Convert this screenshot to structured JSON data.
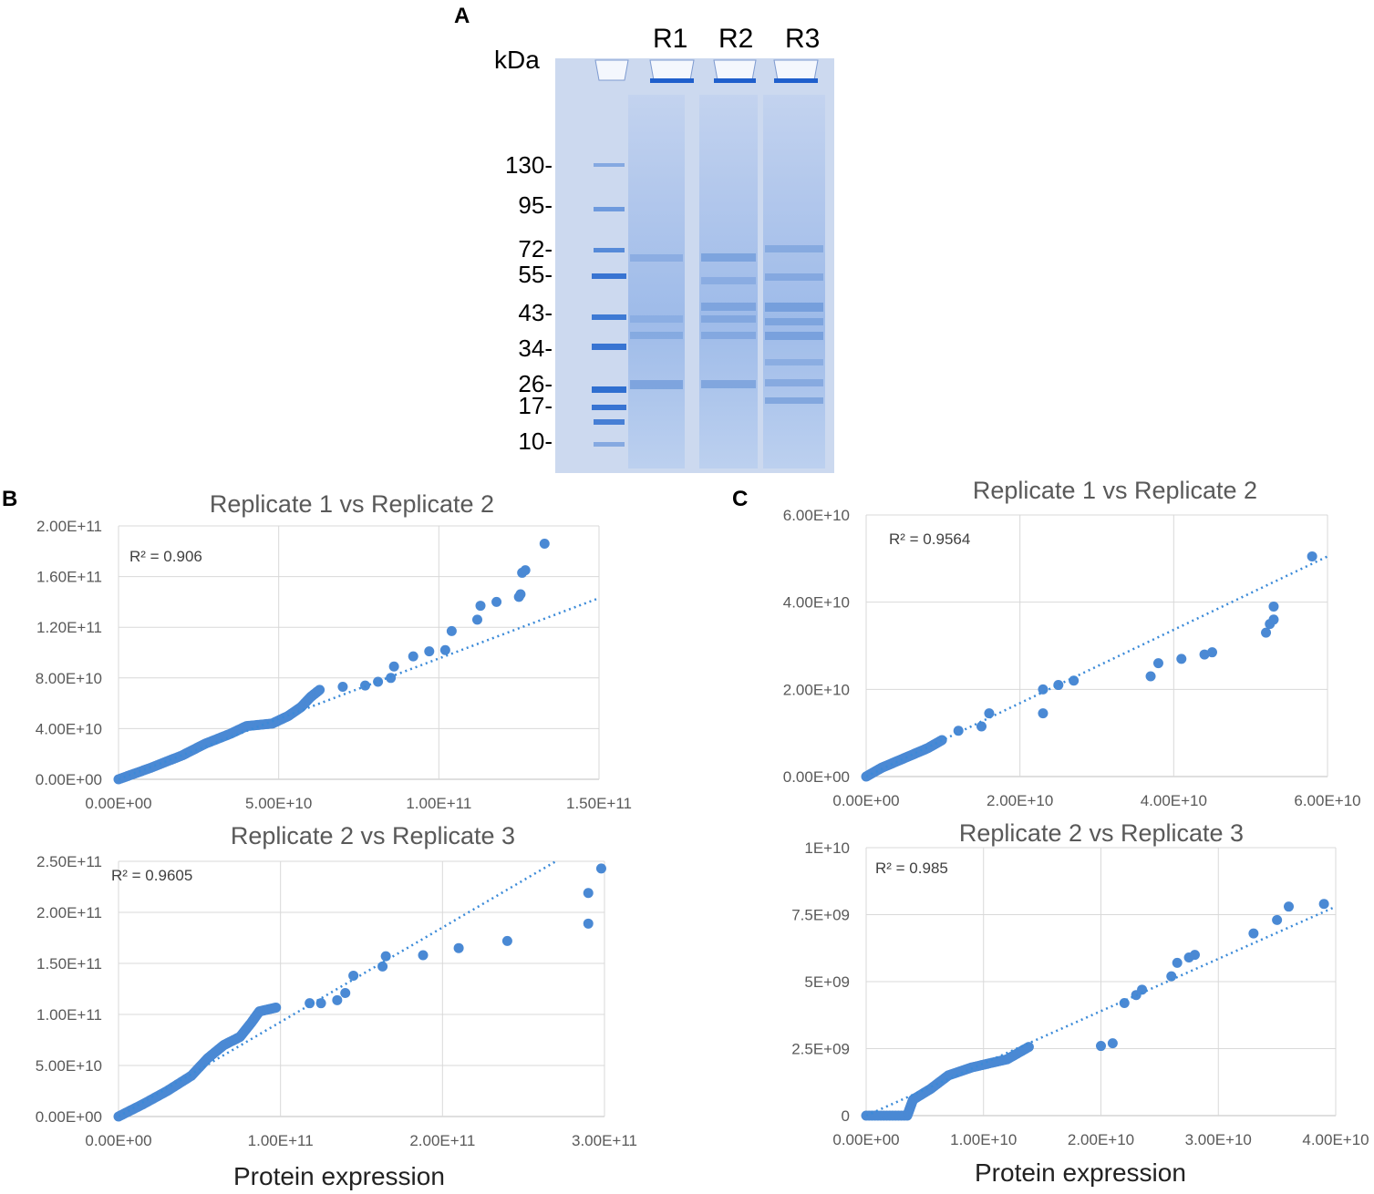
{
  "panels": {
    "a_letter": "A",
    "b_letter": "B",
    "c_letter": "C"
  },
  "gel": {
    "unit_label": "kDa",
    "lanes": [
      "R1",
      "R2",
      "R3"
    ],
    "markers": [
      "130-",
      "95-",
      "72-",
      "55-",
      "43-",
      "34-",
      "26-",
      "17-",
      "10-"
    ],
    "gel_color": "#c9d6ee",
    "band_color": "#2f6fd0"
  },
  "xlabels": {
    "b": "Protein expression",
    "c": "Protein expression"
  },
  "colors": {
    "point": "#4a89d4",
    "trend": "#3b8ad8",
    "grid": "#d9d9d9"
  },
  "chart_data": [
    {
      "id": "b1",
      "type": "scatter",
      "title": "Replicate 1 vs Replicate 2",
      "r2": "R² = 0.906",
      "xlim": [
        0,
        150000000000
      ],
      "ylim": [
        0,
        200000000000
      ],
      "xticks": [
        0,
        50000000000,
        100000000000,
        150000000000
      ],
      "xtick_labels": [
        "0.00E+00",
        "5.00E+10",
        "1.00E+11",
        "1.50E+11"
      ],
      "yticks": [
        0,
        40000000000,
        80000000000,
        120000000000,
        160000000000,
        200000000000
      ],
      "ytick_labels": [
        "0.00E+00",
        "4.00E+10",
        "8.00E+10",
        "1.20E+11",
        "1.60E+11",
        "2.00E+11"
      ],
      "trend": [
        [
          0,
          0
        ],
        [
          150000000000,
          143000000000
        ]
      ],
      "dense": [
        [
          0,
          0
        ],
        [
          10000000000,
          9000000000
        ],
        [
          20000000000,
          19000000000
        ],
        [
          27000000000,
          28000000000
        ],
        [
          35000000000,
          36000000000
        ],
        [
          40000000000,
          42000000000
        ],
        [
          48000000000,
          44000000000
        ],
        [
          53000000000,
          50000000000
        ],
        [
          57000000000,
          57000000000
        ],
        [
          60000000000,
          65000000000
        ],
        [
          63000000000,
          71000000000
        ]
      ],
      "points": [
        [
          70000000000,
          73000000000
        ],
        [
          77000000000,
          74000000000
        ],
        [
          81000000000,
          77000000000
        ],
        [
          85000000000,
          80000000000
        ],
        [
          86000000000,
          89000000000
        ],
        [
          92000000000,
          97000000000
        ],
        [
          97000000000,
          101000000000
        ],
        [
          102000000000,
          102000000000
        ],
        [
          104000000000,
          117000000000
        ],
        [
          112000000000,
          126000000000
        ],
        [
          113000000000,
          137000000000
        ],
        [
          118000000000,
          140000000000
        ],
        [
          125000000000,
          144000000000
        ],
        [
          125500000000,
          146000000000
        ],
        [
          126000000000,
          163000000000
        ],
        [
          127000000000,
          165000000000
        ],
        [
          133000000000,
          186000000000
        ]
      ]
    },
    {
      "id": "b2",
      "type": "scatter",
      "title": "Replicate 2 vs Replicate 3",
      "r2": "R² = 0.9605",
      "xlim": [
        0,
        300000000000
      ],
      "ylim": [
        0,
        250000000000
      ],
      "xticks": [
        0,
        100000000000,
        200000000000,
        300000000000
      ],
      "xtick_labels": [
        "0.00E+00",
        "1.00E+11",
        "2.00E+11",
        "3.00E+11"
      ],
      "yticks": [
        0,
        50000000000,
        100000000000,
        150000000000,
        200000000000,
        250000000000
      ],
      "ytick_labels": [
        "0.00E+00",
        "5.00E+10",
        "1.00E+11",
        "1.50E+11",
        "2.00E+11",
        "2.50E+11"
      ],
      "trend": [
        [
          0,
          0
        ],
        [
          270000000000,
          250000000000
        ]
      ],
      "dense": [
        [
          0,
          0
        ],
        [
          15000000000,
          12000000000
        ],
        [
          30000000000,
          25000000000
        ],
        [
          45000000000,
          40000000000
        ],
        [
          55000000000,
          57000000000
        ],
        [
          65000000000,
          70000000000
        ],
        [
          75000000000,
          78000000000
        ],
        [
          82000000000,
          92000000000
        ],
        [
          87000000000,
          103000000000
        ],
        [
          98000000000,
          107000000000
        ]
      ],
      "points": [
        [
          118000000000,
          111000000000
        ],
        [
          125000000000,
          111000000000
        ],
        [
          135000000000,
          114000000000
        ],
        [
          140000000000,
          121000000000
        ],
        [
          145000000000,
          138000000000
        ],
        [
          163000000000,
          147000000000
        ],
        [
          165000000000,
          157000000000
        ],
        [
          188000000000,
          158000000000
        ],
        [
          210000000000,
          165000000000
        ],
        [
          240000000000,
          172000000000
        ],
        [
          290000000000,
          189000000000
        ],
        [
          290000000000,
          219000000000
        ],
        [
          298000000000,
          243000000000
        ]
      ]
    },
    {
      "id": "c1",
      "type": "scatter",
      "title": "Replicate 1 vs Replicate 2",
      "r2": "R² = 0.9564",
      "xlim": [
        0,
        60000000000
      ],
      "ylim": [
        0,
        60000000000
      ],
      "xticks": [
        0,
        20000000000,
        40000000000,
        60000000000
      ],
      "xtick_labels": [
        "0.00E+00",
        "2.00E+10",
        "4.00E+10",
        "6.00E+10"
      ],
      "yticks": [
        0,
        20000000000,
        40000000000,
        60000000000
      ],
      "ytick_labels": [
        "0.00E+00",
        "2.00E+10",
        "4.00E+10",
        "6.00E+10"
      ],
      "trend": [
        [
          0,
          0
        ],
        [
          60000000000,
          50500000000
        ]
      ],
      "dense": [
        [
          0,
          0
        ],
        [
          2000000000,
          2000000000
        ],
        [
          4000000000,
          3500000000
        ],
        [
          6000000000,
          5000000000
        ],
        [
          8000000000,
          6500000000
        ],
        [
          10000000000,
          8500000000
        ]
      ],
      "points": [
        [
          12000000000,
          10500000000
        ],
        [
          15000000000,
          11500000000
        ],
        [
          16000000000,
          14500000000
        ],
        [
          23000000000,
          14500000000
        ],
        [
          23000000000,
          20000000000
        ],
        [
          25000000000,
          21000000000
        ],
        [
          27000000000,
          22000000000
        ],
        [
          37000000000,
          23000000000
        ],
        [
          38000000000,
          26000000000
        ],
        [
          41000000000,
          27000000000
        ],
        [
          44000000000,
          28000000000
        ],
        [
          45000000000,
          28500000000
        ],
        [
          52000000000,
          33000000000
        ],
        [
          52500000000,
          35000000000
        ],
        [
          53000000000,
          36000000000
        ],
        [
          53000000000,
          39000000000
        ],
        [
          58000000000,
          50500000000
        ]
      ]
    },
    {
      "id": "c2",
      "type": "scatter",
      "title": "Replicate 2 vs Replicate 3",
      "r2": "R² = 0.985",
      "xlim": [
        0,
        40000000000
      ],
      "ylim": [
        0,
        10000000000
      ],
      "xticks": [
        0,
        10000000000,
        20000000000,
        30000000000,
        40000000000
      ],
      "xtick_labels": [
        "0.00E+00",
        "1.00E+10",
        "2.00E+10",
        "3.00E+10",
        "4.00E+10"
      ],
      "yticks": [
        0,
        2500000000,
        5000000000,
        7500000000,
        10000000000
      ],
      "ytick_labels": [
        "0",
        "2.5E+09",
        "5E+09",
        "7.5E+09",
        "1E+10"
      ],
      "trend": [
        [
          0,
          0
        ],
        [
          40000000000,
          7800000000
        ]
      ],
      "dense": [
        [
          0,
          0
        ],
        [
          3500000000,
          0
        ],
        [
          4000000000,
          600000000
        ],
        [
          5500000000,
          1000000000
        ],
        [
          7000000000,
          1500000000
        ],
        [
          9000000000,
          1800000000
        ],
        [
          12000000000,
          2100000000
        ],
        [
          14000000000,
          2600000000
        ]
      ],
      "points": [
        [
          20000000000,
          2600000000
        ],
        [
          21000000000,
          2700000000
        ],
        [
          22000000000,
          4200000000
        ],
        [
          23000000000,
          4500000000
        ],
        [
          23500000000,
          4700000000
        ],
        [
          26000000000,
          5200000000
        ],
        [
          26500000000,
          5700000000
        ],
        [
          27500000000,
          5900000000
        ],
        [
          28000000000,
          6000000000
        ],
        [
          33000000000,
          6800000000
        ],
        [
          35000000000,
          7300000000
        ],
        [
          36000000000,
          7800000000
        ],
        [
          39000000000,
          7900000000
        ]
      ]
    }
  ]
}
